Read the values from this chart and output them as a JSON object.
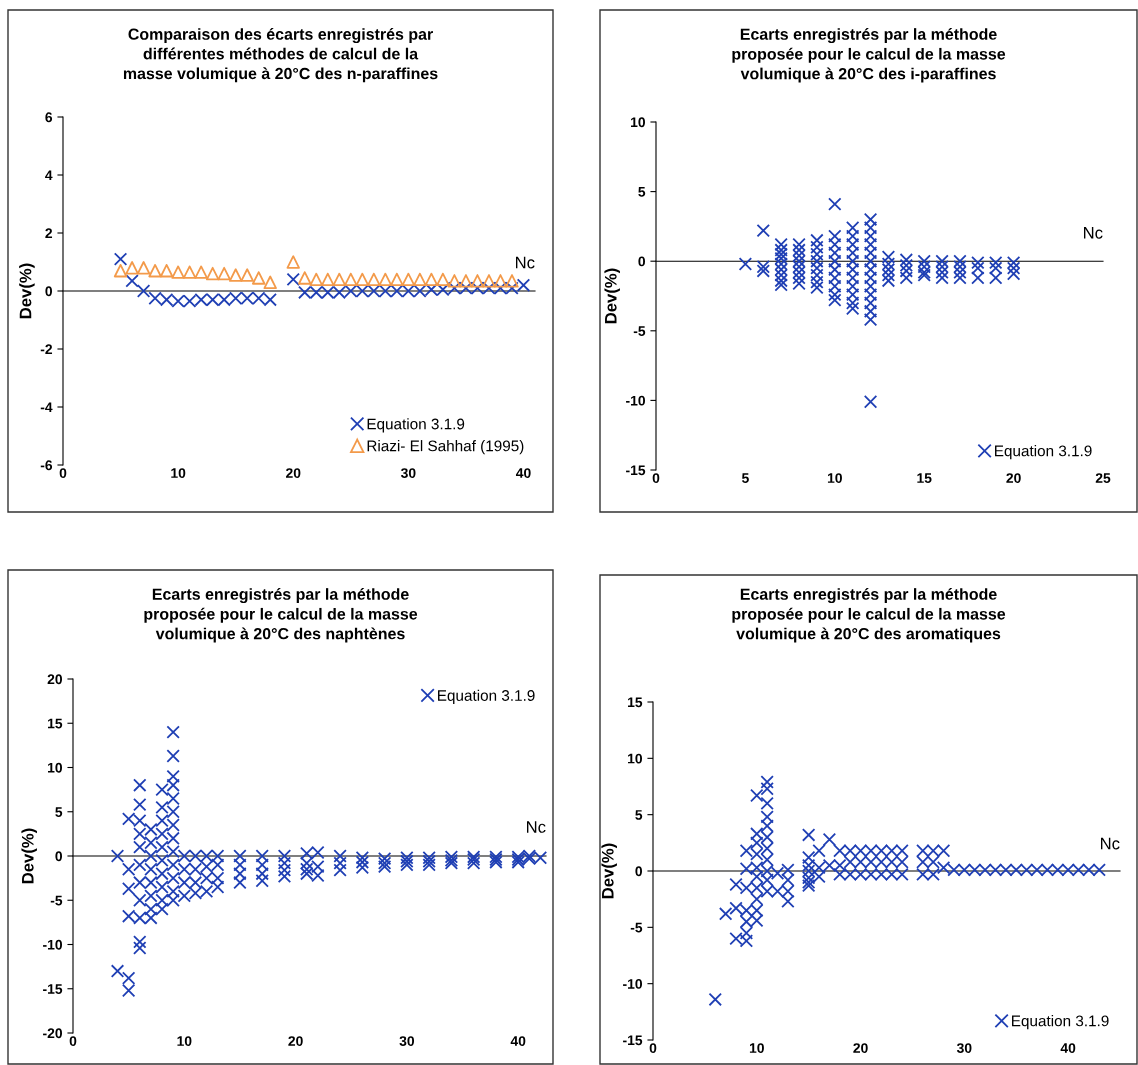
{
  "chart_data": [
    {
      "type": "scatter",
      "title": "Comparaison des écarts enregistrés par\ndifférentes méthodes de calcul de la\nmasse volumique à 20°C des n-paraffines",
      "xlabel": "Nc",
      "ylabel": "Dev(%)",
      "xlim": [
        0,
        41
      ],
      "xticks": [
        0,
        10,
        20,
        30,
        40
      ],
      "ylim": [
        -6,
        6
      ],
      "yticks": [
        -6,
        -4,
        -2,
        0,
        2,
        4,
        6
      ],
      "legend": "bottom right",
      "series": [
        {
          "name": "Equation 3.1.9",
          "color": "#1f3fb4",
          "marker": "cross",
          "x": [
            5,
            6,
            7,
            8,
            9,
            10,
            11,
            12,
            13,
            14,
            15,
            16,
            17,
            18,
            20,
            21,
            22,
            23,
            24,
            25,
            26,
            27,
            28,
            29,
            30,
            31,
            32,
            33,
            34,
            35,
            36,
            37,
            38,
            39,
            40
          ],
          "values": [
            1.1,
            0.35,
            0.0,
            -0.25,
            -0.3,
            -0.35,
            -0.35,
            -0.3,
            -0.3,
            -0.3,
            -0.25,
            -0.25,
            -0.25,
            -0.3,
            0.4,
            -0.05,
            -0.05,
            -0.05,
            -0.05,
            0,
            0,
            0,
            0,
            0,
            0,
            0,
            0.05,
            0.05,
            0.1,
            0.1,
            0.1,
            0.1,
            0.1,
            0.1,
            0.2
          ]
        },
        {
          "name": "Riazi- El Sahhaf (1995)",
          "color": "#f39a4a",
          "marker": "triangle",
          "x": [
            5,
            6,
            7,
            8,
            9,
            10,
            11,
            12,
            13,
            14,
            15,
            16,
            17,
            18,
            20,
            21,
            22,
            23,
            24,
            25,
            26,
            27,
            28,
            29,
            30,
            31,
            32,
            33,
            34,
            35,
            36,
            37,
            38,
            39
          ],
          "values": [
            0.7,
            0.8,
            0.8,
            0.7,
            0.7,
            0.65,
            0.65,
            0.65,
            0.6,
            0.6,
            0.55,
            0.55,
            0.45,
            0.3,
            1.0,
            0.45,
            0.4,
            0.4,
            0.4,
            0.4,
            0.4,
            0.4,
            0.4,
            0.4,
            0.4,
            0.4,
            0.4,
            0.4,
            0.35,
            0.35,
            0.35,
            0.35,
            0.35,
            0.35
          ]
        }
      ]
    },
    {
      "type": "scatter",
      "title": "Ecarts enregistrés par la méthode\nproposée pour le calcul de la masse\nvolumique à 20°C des i-paraffines",
      "xlabel": "Nc",
      "ylabel": "Dev(%)",
      "xlim": [
        0,
        25
      ],
      "xticks": [
        0,
        5,
        10,
        15,
        20,
        25
      ],
      "ylim": [
        -15,
        10
      ],
      "yticks": [
        -15,
        -10,
        -5,
        0,
        5,
        10
      ],
      "legend": "bottom right",
      "series": [
        {
          "name": "Equation 3.1.9",
          "color": "#1f3fb4",
          "marker": "cross",
          "x": [
            5,
            6,
            6,
            6,
            7,
            7,
            7,
            7,
            7,
            7,
            7,
            7,
            7,
            8,
            8,
            8,
            8,
            8,
            8,
            8,
            8,
            9,
            9,
            9,
            9,
            9,
            9,
            9,
            9,
            10,
            10,
            10,
            10,
            10,
            10,
            10,
            10,
            10,
            10,
            11,
            11,
            11,
            11,
            11,
            11,
            11,
            11,
            11,
            11,
            11,
            12,
            12,
            12,
            12,
            12,
            12,
            12,
            12,
            12,
            12,
            12,
            12,
            12,
            12,
            13,
            13,
            13,
            13,
            13,
            14,
            14,
            14,
            14,
            15,
            15,
            15,
            15,
            16,
            16,
            16,
            16,
            17,
            17,
            17,
            17,
            18,
            18,
            18,
            19,
            19,
            19,
            20,
            20,
            20
          ],
          "values": [
            -0.2,
            2.2,
            -0.4,
            -0.7,
            1.2,
            0.8,
            0.5,
            0.2,
            -0.2,
            -0.6,
            -1.0,
            -1.4,
            -1.7,
            1.2,
            0.8,
            0.4,
            0,
            -0.4,
            -0.8,
            -1.2,
            -1.6,
            1.5,
            1.0,
            0.5,
            0,
            -0.5,
            -1.0,
            -1.5,
            -1.9,
            4.1,
            1.8,
            1.2,
            0.6,
            0,
            -0.6,
            -1.2,
            -1.8,
            -2.4,
            -2.8,
            2.4,
            1.8,
            1.2,
            0.6,
            0,
            -0.6,
            -1.2,
            -1.8,
            -2.4,
            -3.0,
            -3.4,
            3.0,
            2.4,
            1.8,
            1.2,
            0.6,
            0,
            -0.6,
            -1.2,
            -1.8,
            -2.4,
            -3.0,
            -3.6,
            -4.2,
            -10.1,
            0.3,
            -0.2,
            -0.6,
            -1.0,
            -1.4,
            0.1,
            -0.3,
            -0.7,
            -1.2,
            0,
            -0.4,
            -0.8,
            -1.0,
            0,
            -0.4,
            -0.8,
            -1.2,
            0,
            -0.4,
            -0.8,
            -1.2,
            -0.1,
            -0.5,
            -1.2,
            -0.1,
            -0.5,
            -1.2,
            -0.1,
            -0.5,
            -0.9
          ]
        }
      ]
    },
    {
      "type": "scatter",
      "title": "Ecarts enregistrés par la méthode\nproposée pour le calcul de la masse\nvolumique à 20°C des naphtènes",
      "xlabel": "Nc",
      "ylabel": "Dev(%)",
      "xlim": [
        0,
        42.5
      ],
      "xticks": [
        0,
        10,
        20,
        30,
        40
      ],
      "ylim": [
        -20,
        20
      ],
      "yticks": [
        -20,
        -15,
        -10,
        -5,
        0,
        5,
        10,
        15,
        20
      ],
      "legend": "top right",
      "series": [
        {
          "name": "Equation 3.1.9",
          "color": "#1f3fb4",
          "marker": "cross",
          "x": [
            4,
            4,
            5,
            5,
            5,
            5,
            5,
            5,
            6,
            6,
            6,
            6,
            6,
            6,
            6,
            6,
            6,
            6,
            6,
            7,
            7,
            7,
            7,
            7,
            7,
            7,
            7,
            8,
            8,
            8,
            8,
            8,
            8,
            8,
            8,
            8,
            8,
            9,
            9,
            9,
            9,
            9,
            9,
            9,
            9,
            9,
            9,
            9,
            9,
            9,
            10,
            10,
            10,
            10,
            11,
            11,
            11,
            11,
            12,
            12,
            12,
            12,
            13,
            13,
            13,
            13,
            15,
            15,
            15,
            15,
            17,
            17,
            17,
            17,
            19,
            19,
            19,
            19,
            21,
            21,
            21,
            21,
            22,
            22,
            22,
            24,
            24,
            24,
            26,
            26,
            26,
            28,
            28,
            28,
            30,
            30,
            30,
            32,
            32,
            32,
            34,
            34,
            34,
            36,
            36,
            36,
            38,
            38,
            38,
            40,
            40,
            40,
            41,
            41,
            42
          ],
          "values": [
            0,
            -13,
            4.2,
            -1.5,
            -3.7,
            -6.8,
            -13.8,
            -15.2,
            8,
            5.8,
            4,
            2.5,
            1,
            -1,
            -3,
            -5,
            -7,
            -9.7,
            -10.4,
            3,
            1.5,
            0,
            -1.5,
            -3,
            -4.5,
            -6,
            -7,
            7.5,
            5.5,
            4,
            2.5,
            1,
            -0.5,
            -2,
            -3.5,
            -5,
            -6,
            14,
            11.3,
            9,
            8,
            6.5,
            5,
            3.5,
            2,
            0.5,
            -1,
            -2.5,
            -4,
            -5,
            0,
            -1.5,
            -3,
            -4.5,
            0,
            -1.5,
            -3,
            -4.2,
            0,
            -1.2,
            -2.5,
            -4,
            0,
            -1,
            -2.5,
            -3.5,
            0,
            -1,
            -2,
            -3,
            0,
            -1,
            -2,
            -2.8,
            0,
            -0.8,
            -1.6,
            -2.3,
            0.3,
            -0.8,
            -1.5,
            -2,
            0.4,
            -1.2,
            -2.2,
            0,
            -0.8,
            -1.6,
            -0.2,
            -0.7,
            -1.3,
            -0.3,
            -0.8,
            -1.2,
            -0.2,
            -0.6,
            -1,
            -0.2,
            -0.6,
            -1,
            -0.1,
            -0.5,
            -0.8,
            -0.1,
            -0.4,
            -0.8,
            -0.1,
            -0.4,
            -0.7,
            -0.1,
            -0.4,
            -0.7,
            0,
            -0.3,
            -0.2
          ]
        }
      ]
    },
    {
      "type": "scatter",
      "title": "Ecarts enregistrés par la méthode\nproposée pour le calcul de la masse\nvolumique à 20°C des aromatiques",
      "xlabel": "Nc",
      "ylabel": "Dev(%)",
      "xlim": [
        0,
        45
      ],
      "xticks": [
        0,
        10,
        20,
        30,
        40
      ],
      "ylim": [
        -15,
        15
      ],
      "yticks": [
        -15,
        -10,
        -5,
        0,
        5,
        10,
        15
      ],
      "legend": "bottom right",
      "series": [
        {
          "name": "Equation 3.1.9",
          "color": "#1f3fb4",
          "marker": "cross",
          "x": [
            6,
            7,
            8,
            8,
            8,
            9,
            9,
            9,
            9,
            9,
            9,
            9,
            10,
            10,
            10,
            10,
            10,
            10,
            10,
            10,
            10,
            10,
            11,
            11,
            11,
            11,
            11,
            11,
            11,
            11,
            11,
            11,
            11,
            12,
            12,
            13,
            13,
            13,
            13,
            15,
            15,
            15,
            15,
            15,
            15,
            15,
            16,
            16,
            16,
            17,
            17,
            18,
            18,
            18,
            19,
            19,
            19,
            20,
            20,
            20,
            21,
            21,
            21,
            22,
            22,
            22,
            23,
            23,
            23,
            24,
            24,
            24,
            26,
            26,
            26,
            27,
            27,
            27,
            28,
            28,
            29,
            30,
            31,
            32,
            33,
            34,
            35,
            36,
            37,
            38,
            39,
            40,
            41,
            42,
            43
          ],
          "values": [
            -11.4,
            -3.8,
            -1.2,
            -3.3,
            -6.0,
            1.8,
            0.2,
            -1.5,
            -3.5,
            -4.5,
            -5.5,
            -6.2,
            6.7,
            3.3,
            2.5,
            1.5,
            0.3,
            -0.5,
            -1.5,
            -2.5,
            -3.5,
            -4.4,
            7.9,
            7.3,
            6.0,
            4.8,
            4.0,
            3.0,
            2.0,
            1.0,
            0,
            -0.8,
            -1.8,
            -0.2,
            -1.8,
            0.1,
            -0.8,
            -1.8,
            -2.7,
            3.2,
            1.2,
            0.5,
            0,
            -0.6,
            -1.0,
            -1.3,
            1.8,
            0.3,
            -0.5,
            2.8,
            0.5,
            1.8,
            0.5,
            -0.3,
            1.8,
            0.8,
            -0.3,
            1.8,
            0.8,
            -0.3,
            1.8,
            0.8,
            -0.3,
            1.8,
            0.8,
            -0.3,
            1.8,
            0.8,
            -0.3,
            1.8,
            0.8,
            -0.3,
            1.8,
            0.8,
            -0.3,
            1.8,
            0.8,
            -0.3,
            1.8,
            0.3,
            0.1,
            0.1,
            0.1,
            0.1,
            0.1,
            0.1,
            0.1,
            0.1,
            0.1,
            0.1,
            0.1,
            0.1,
            0.1,
            0.1,
            0.1
          ]
        }
      ]
    }
  ]
}
